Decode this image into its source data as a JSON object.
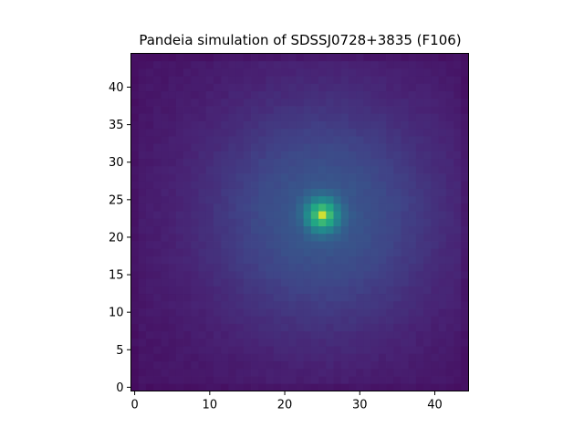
{
  "chart_data": {
    "type": "heatmap",
    "title": "Pandeia simulation of SDSSJ0728+3835 (F106)",
    "xlabel": "",
    "ylabel": "",
    "grid": false,
    "legend": "none",
    "origin": "lower",
    "colormap": "viridis",
    "shape": [
      45,
      45
    ],
    "xlim": [
      -0.5,
      44.5
    ],
    "ylim": [
      -0.5,
      44.5
    ],
    "x_ticks": [
      0,
      10,
      20,
      30,
      40
    ],
    "y_ticks": [
      0,
      5,
      10,
      15,
      20,
      25,
      30,
      35,
      40
    ],
    "peak": {
      "x": 25,
      "y": 23
    },
    "value_range": [
      0,
      1
    ],
    "model": {
      "core_amplitude": 0.62,
      "core_sigma": 1.5,
      "halo_amplitude": 0.28,
      "halo_sigma": 11,
      "background": 0.07
    }
  }
}
